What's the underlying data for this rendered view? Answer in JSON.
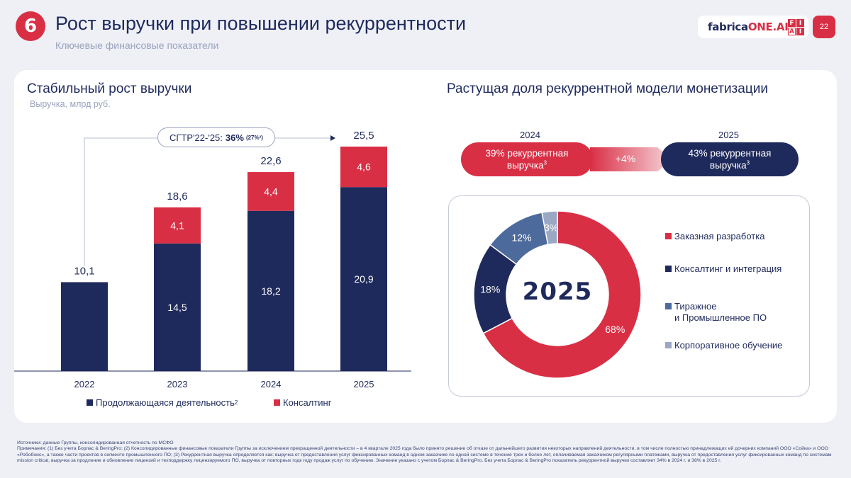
{
  "header": {
    "section_number": "6",
    "title": "Рост выручки при повышении рекуррентности",
    "subtitle": "Ключевые финансовые показатели",
    "logo_prefix": "fabrica",
    "logo_accent": "ONE.AI",
    "logo_grid": [
      "F",
      "I",
      "A",
      "I"
    ],
    "page_number": "22"
  },
  "left": {
    "title": "Стабильный рост выручки",
    "unit": "Выручка, млрд руб.",
    "cagr_label": "СГТР'22-'25:",
    "cagr_value": "36%",
    "cagr_note": "(27%³)",
    "legend_continuing": "Продолжающаяся деятельность",
    "legend_continuing_sup": "2",
    "legend_consulting": "Консалтинг"
  },
  "chart_data": {
    "type": "bar",
    "stacked": true,
    "categories": [
      "2022",
      "2023",
      "2024",
      "2025"
    ],
    "series": [
      {
        "name": "Продолжающаяся деятельность",
        "values": [
          10.1,
          14.5,
          18.2,
          20.9
        ],
        "labels": [
          "",
          "14,5",
          "18,2",
          "20,9"
        ],
        "color": "#1f2a5c"
      },
      {
        "name": "Консалтинг",
        "values": [
          0,
          4.1,
          4.4,
          4.6
        ],
        "labels": [
          "",
          "4,1",
          "4,4",
          "4,6"
        ],
        "color": "#d92f45"
      }
    ],
    "totals": [
      "10,1",
      "18,6",
      "22,6",
      "25,5"
    ],
    "ylabel": "Выручка, млрд руб.",
    "ylim": [
      0,
      25.5
    ],
    "grid": false
  },
  "right": {
    "title": "Растущая доля рекуррентной модели монетизации",
    "year_from": "2024",
    "year_to": "2025",
    "pill_from_line1": "39% рекуррентная",
    "pill_from_line2": "выручка",
    "pill_to_line1": "43% рекуррентная",
    "pill_to_line2": "выручка",
    "pill_sup": "3",
    "delta": "+4%",
    "donut_center": "2025",
    "donut": [
      {
        "name": "Заказная разработка",
        "value": 68,
        "label": "68%",
        "color": "#d92f45"
      },
      {
        "name": "Консалтинг и интеграция",
        "value": 18,
        "label": "18%",
        "color": "#1f2a5c"
      },
      {
        "name": "Тиражное и Промышленное ПО",
        "line1": "Тиражное",
        "line2": "и Промышленное ПО",
        "value": 12,
        "label": "12%",
        "color": "#4d6a9c"
      },
      {
        "name": "Корпоративное обучение",
        "value": 3,
        "label": "3%",
        "color": "#9aa8c4"
      }
    ]
  },
  "colors": {
    "navy": "#1f2a5c",
    "red": "#d92f45",
    "steel": "#4d6a9c",
    "light": "#9aa8c4",
    "bg": "#eef0f6"
  },
  "footnotes": {
    "line1": "Источники: данные Группы, консолидированная отчетность по МСФО",
    "line2": "Примечания: (1) Без учета Борлас & BeringPro; (2) Консолидированные финансовые показатели Группы за исключением прекращенной деятельности – в 4 квартале 2025 года было принято решение об отказе от дальнейшего развития некоторых направлений деятельности, в том числе полностью принадлежащих ей дочерних компаний ООО «Сойка» и ООО «Робобоис», а также части проектов в сегменте промышленного ПО; (3) Рекуррентная выручка определяется как: выручка от предоставления услуг фиксированных команд в одном заказчике по одной системе в течение трех и более лет, оплачиваемая заказчиком регулярными платежами, выручка от предоставления услуг фиксированных команд по системам mission critical, выручка за продление и обновление лицензий и техподдержку лицензируемого ПО, выручка от повторных годк году продаж услуг по обучению. Значение указано с учетом Борлас & BeringPro. Без учета Борлас & BeringPro показатель рекуррентной выручки составляет 34% в 2024 г. и 38% в 2025 г."
  }
}
